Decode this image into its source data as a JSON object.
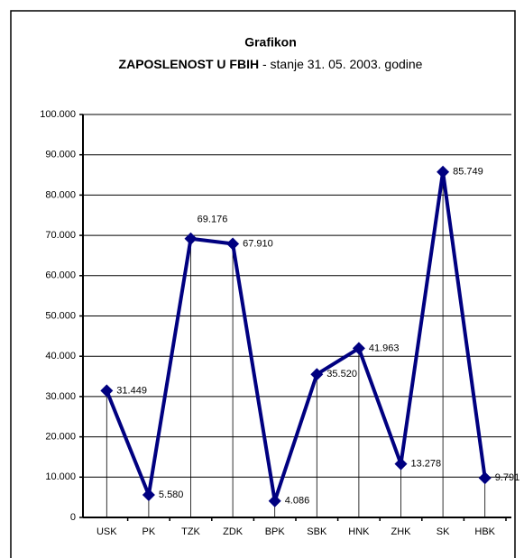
{
  "chart_data": {
    "type": "line",
    "title": "Grafikon",
    "subtitle_bold": "ZAPOSLENOST U FBIH",
    "subtitle": "- stanje 31. 05. 2003. godine",
    "categories": [
      "USK",
      "PK",
      "TZK",
      "ZDK",
      "BPK",
      "SBK",
      "HNK",
      "ZHK",
      "SK",
      "HBK"
    ],
    "values": [
      31449,
      5580,
      69176,
      67910,
      4086,
      35520,
      41963,
      13278,
      85749,
      9791
    ],
    "value_labels": [
      "31.449",
      "5.580",
      "69.176",
      "67.910",
      "4.086",
      "35.520",
      "41.963",
      "13.278",
      "85.749",
      "9.791"
    ],
    "color": "#000080",
    "ylim": [
      0,
      100000
    ],
    "yticks": [
      0,
      {
        "value": 10000,
        "label": "10.000"
      },
      {
        "value": 20000,
        "label": "20.000"
      },
      {
        "value": 30000,
        "label": "30.000"
      },
      {
        "value": 40000,
        "label": "40.000"
      },
      {
        "value": 50000,
        "label": "50.000"
      },
      {
        "value": 60000,
        "label": "60.000"
      },
      {
        "value": 70000,
        "label": "70.000"
      },
      {
        "value": 80000,
        "label": "80.000"
      },
      {
        "value": 90000,
        "label": "90.000"
      },
      {
        "value": 100000,
        "label": "100.000"
      }
    ],
    "grid": true
  }
}
